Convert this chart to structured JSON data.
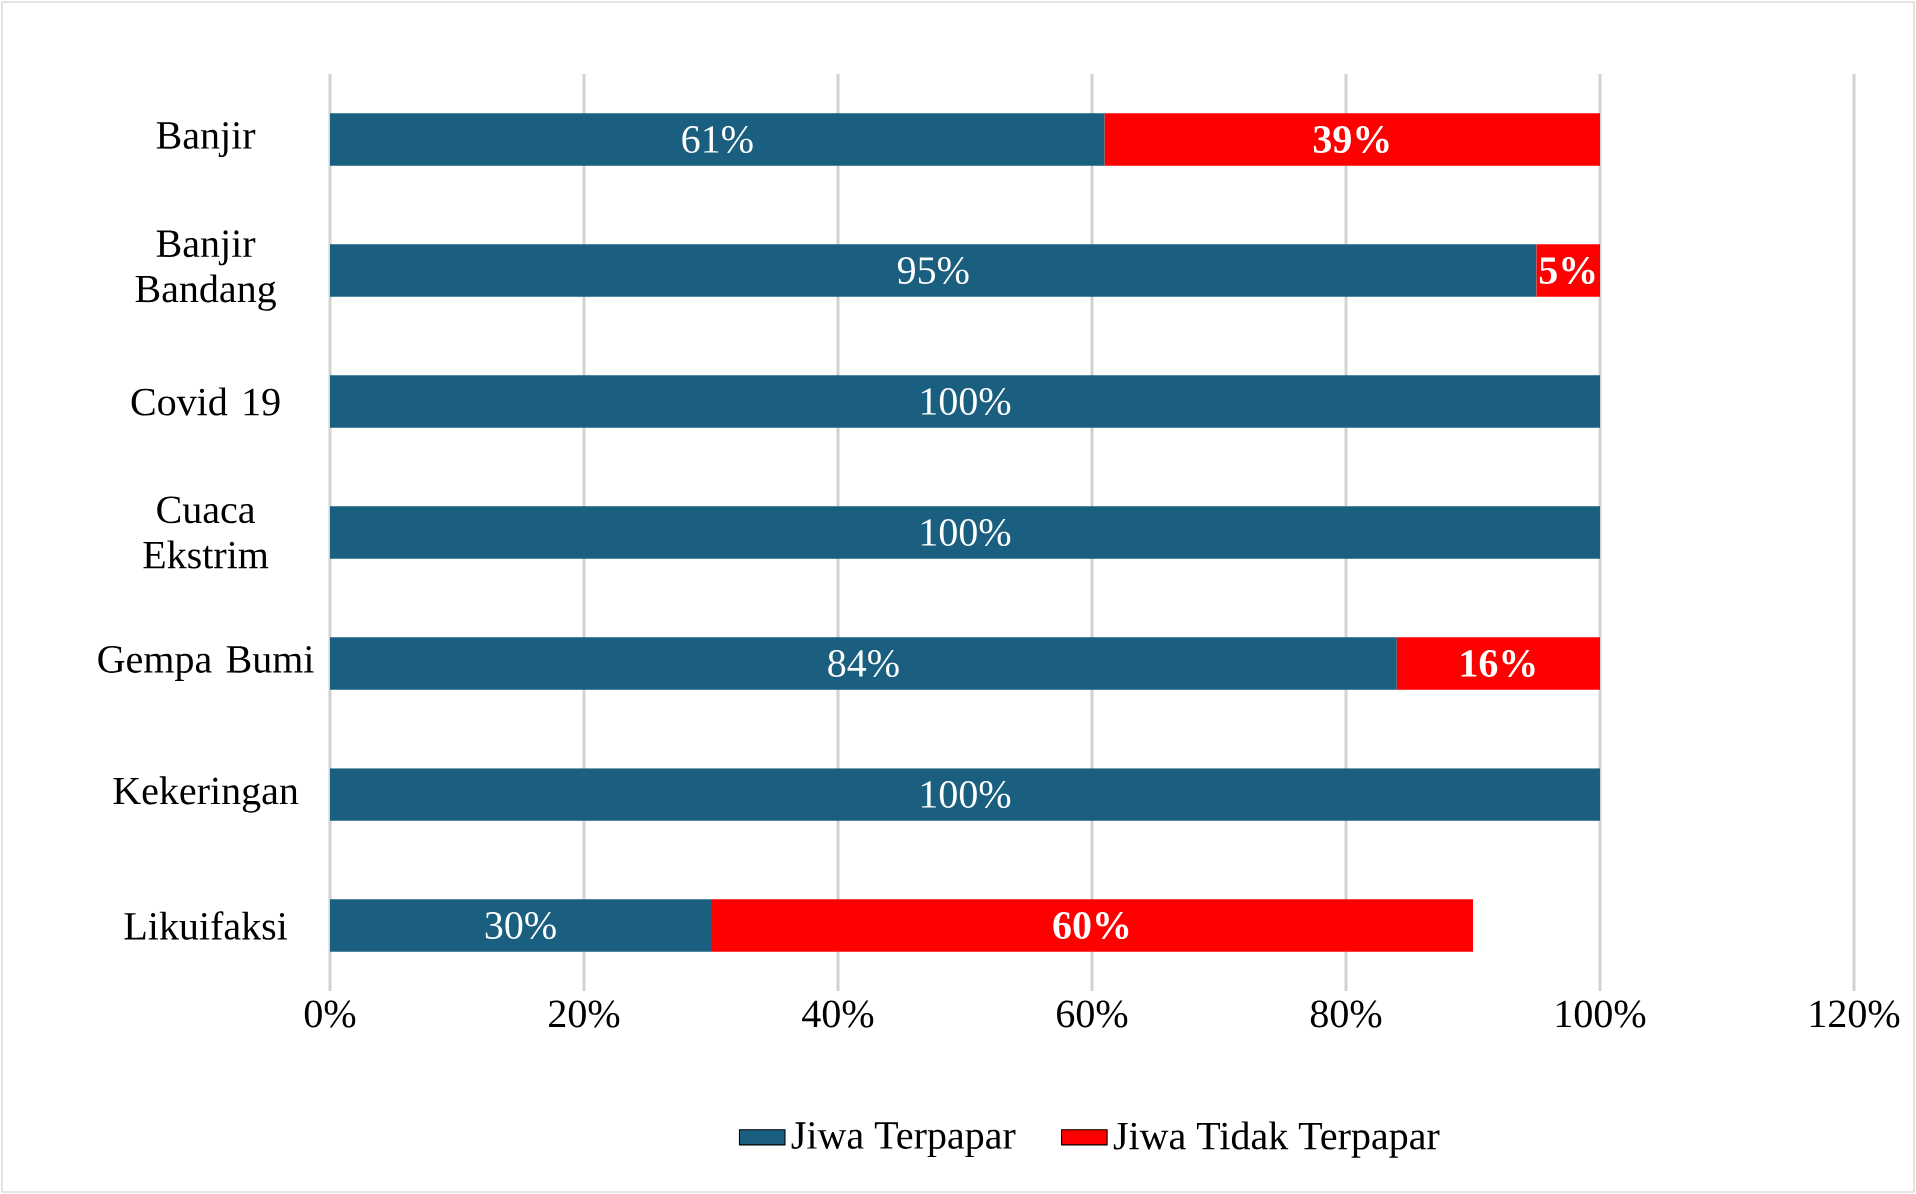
{
  "chart_data": {
    "type": "bar",
    "orientation": "horizontal",
    "stacked": true,
    "categories": [
      "Banjir",
      "Banjir Bandang",
      "Covid 19",
      "Cuaca Ekstrim",
      "Gempa Bumi",
      "Kekeringan",
      "Likuifaksi"
    ],
    "series": [
      {
        "name": "Jiwa Terpapar",
        "color": "#1a5f7f",
        "values": [
          61,
          95,
          100,
          100,
          84,
          100,
          30
        ],
        "value_labels": [
          "61%",
          "95%",
          "100%",
          "100%",
          "84%",
          "100%",
          "30%"
        ]
      },
      {
        "name": "Jiwa Tidak Terpapar",
        "color": "#ff0000",
        "values": [
          39,
          5,
          null,
          null,
          16,
          null,
          60
        ],
        "value_labels": [
          "39%",
          "5%",
          null,
          null,
          "16%",
          null,
          "60%"
        ]
      }
    ],
    "xlim": [
      0,
      120
    ],
    "xticks": [
      {
        "value": 0,
        "label": "0%"
      },
      {
        "value": 20,
        "label": "20%"
      },
      {
        "value": 40,
        "label": "40%"
      },
      {
        "value": 60,
        "label": "60%"
      },
      {
        "value": 80,
        "label": "80%"
      },
      {
        "value": 100,
        "label": "100%"
      },
      {
        "value": 120,
        "label": "120%"
      }
    ],
    "grid": "x",
    "legend": "bottom"
  }
}
